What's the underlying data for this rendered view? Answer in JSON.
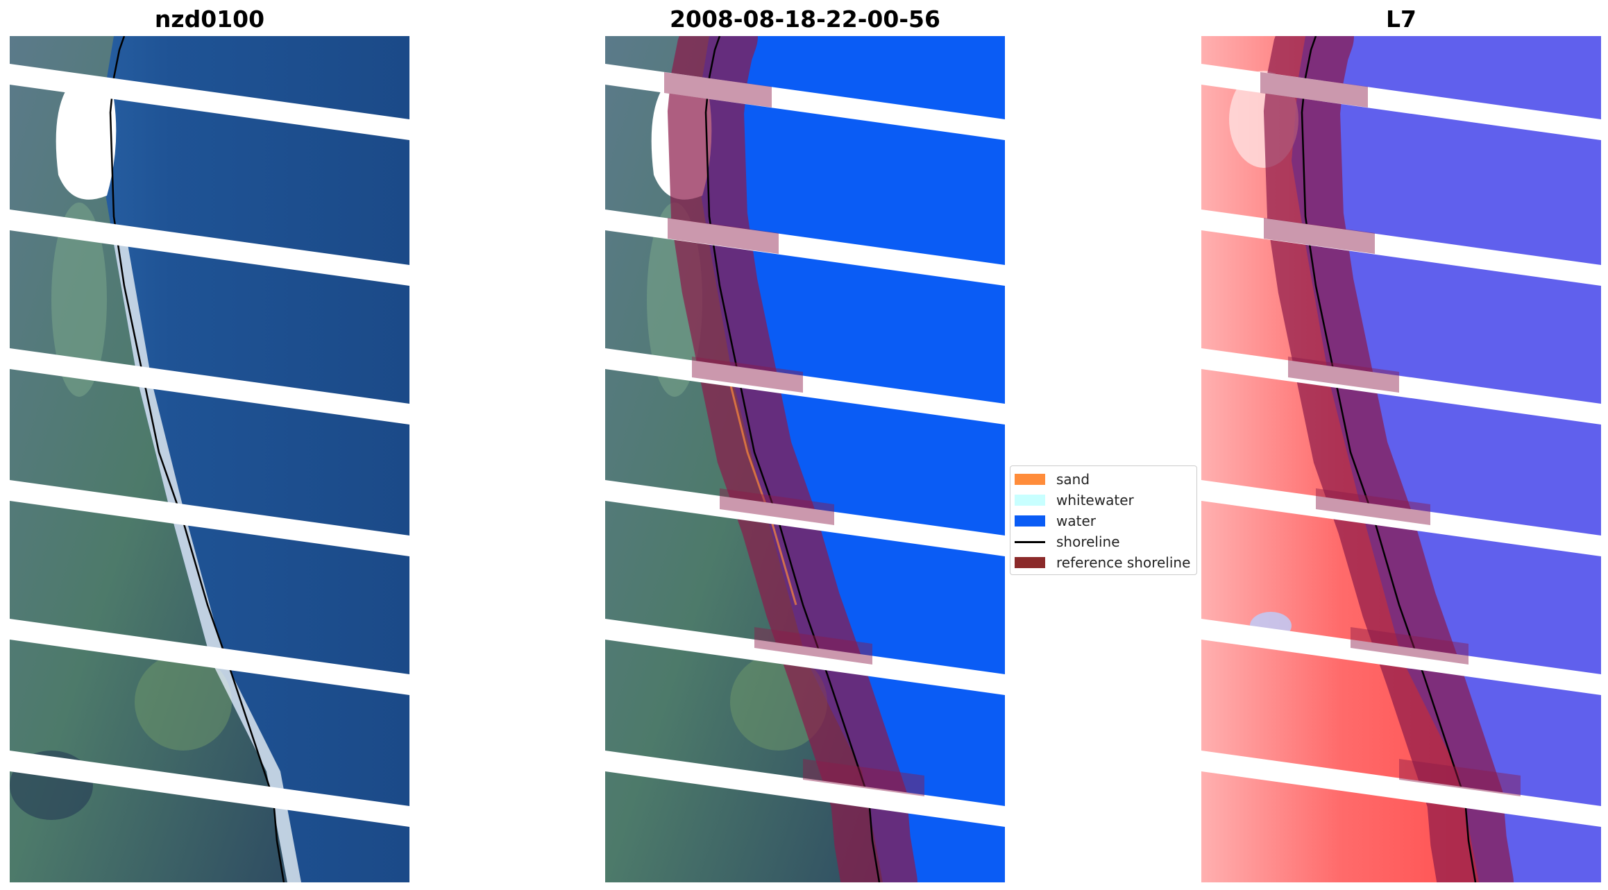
{
  "panels": [
    {
      "title": "nzd0100"
    },
    {
      "title": "2008-08-18-22-00-56"
    },
    {
      "title": "L7"
    }
  ],
  "legend": {
    "items": [
      {
        "label": "sand",
        "color": "#ff8c3a",
        "kind": "patch"
      },
      {
        "label": "whitewater",
        "color": "#c8ffff",
        "kind": "patch"
      },
      {
        "label": "water",
        "color": "#0a5cf5",
        "kind": "patch"
      },
      {
        "label": "shoreline",
        "color": "#000000",
        "kind": "line"
      },
      {
        "label": "reference shoreline",
        "color": "#8b2a2a",
        "kind": "patch"
      }
    ]
  },
  "colors": {
    "ocean": "#1d4f90",
    "land": "#4b6e7a",
    "water_class": "#0a5cf5",
    "reference_band": "#8b1a4a",
    "index_land": "#ff5a5a",
    "index_water": "#4a4ae8",
    "shoreline": "#000000",
    "scanline_gap": "#ffffff"
  }
}
